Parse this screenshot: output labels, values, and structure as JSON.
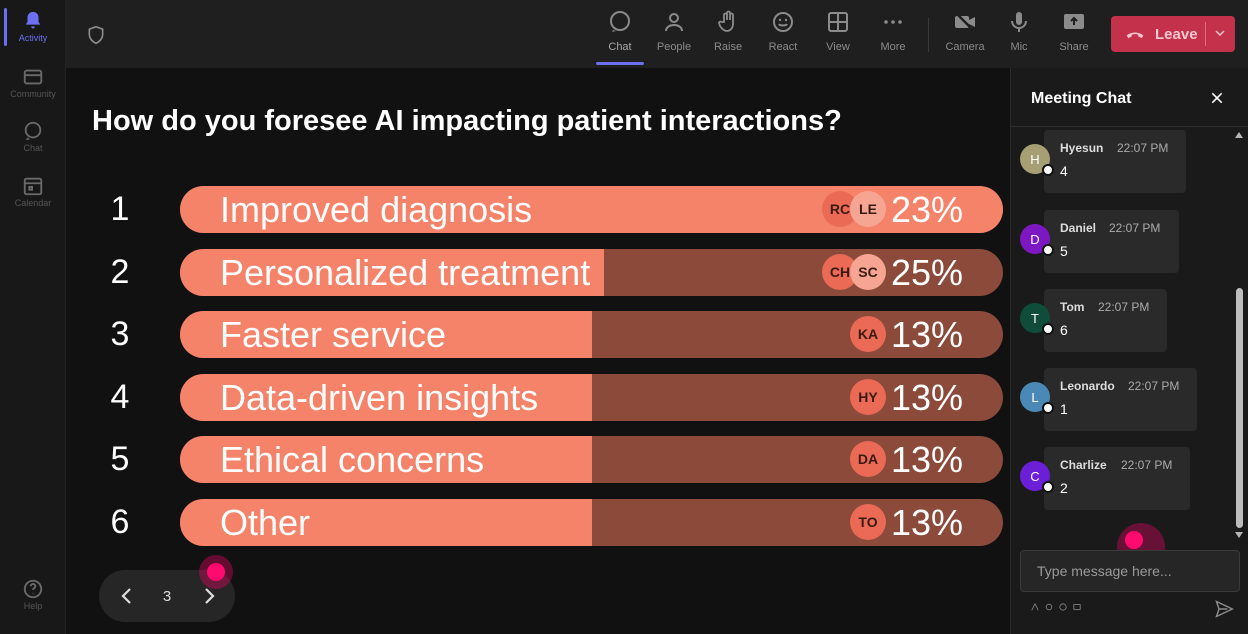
{
  "rail": {
    "items": [
      {
        "label": "Activity",
        "icon": "bell-icon"
      },
      {
        "label": "Community",
        "icon": "community-icon"
      },
      {
        "label": "Chat",
        "icon": "chat-icon"
      },
      {
        "label": "Calendar",
        "icon": "calendar-icon"
      }
    ],
    "help_label": "Help"
  },
  "toolbar": {
    "items": [
      {
        "label": "Chat",
        "icon": "chat-icon"
      },
      {
        "label": "People",
        "icon": "people-icon"
      },
      {
        "label": "Raise",
        "icon": "hand-icon"
      },
      {
        "label": "React",
        "icon": "smile-icon"
      },
      {
        "label": "View",
        "icon": "grid-icon"
      },
      {
        "label": "More",
        "icon": "more-icon"
      },
      {
        "label": "Camera",
        "icon": "camera-off-icon"
      },
      {
        "label": "Mic",
        "icon": "mic-icon"
      },
      {
        "label": "Share",
        "icon": "share-icon"
      }
    ],
    "leave_label": "Leave"
  },
  "poll": {
    "question": "How do you foresee AI impacting patient interactions?",
    "options": [
      {
        "num": "1",
        "label": "Improved diagnosis",
        "pct": "23%",
        "fill": 1.0,
        "avatars": [
          "RC",
          "LE"
        ]
      },
      {
        "num": "2",
        "label": "Personalized treatment",
        "pct": "25%",
        "fill": 0.515,
        "avatars": [
          "CH",
          "SC"
        ]
      },
      {
        "num": "3",
        "label": "Faster service",
        "pct": "13%",
        "fill": 0.5,
        "avatars": [
          "KA"
        ]
      },
      {
        "num": "4",
        "label": "Data-driven insights",
        "pct": "13%",
        "fill": 0.5,
        "avatars": [
          "HY"
        ]
      },
      {
        "num": "5",
        "label": "Ethical concerns",
        "pct": "13%",
        "fill": 0.5,
        "avatars": [
          "DA"
        ]
      },
      {
        "num": "6",
        "label": "Other",
        "pct": "13%",
        "fill": 0.5,
        "avatars": [
          "TO"
        ]
      }
    ],
    "page": "3"
  },
  "chat": {
    "title": "Meeting Chat",
    "messages": [
      {
        "initial": "H",
        "name": "Hyesun",
        "time": "22:07 PM",
        "text": "4",
        "color": "#a59f73"
      },
      {
        "initial": "D",
        "name": "Daniel",
        "time": "22:07 PM",
        "text": "5",
        "color": "#7d17c2"
      },
      {
        "initial": "T",
        "name": "Tom",
        "time": "22:07 PM",
        "text": "6",
        "color": "#0f4c3a"
      },
      {
        "initial": "L",
        "name": "Leonardo",
        "time": "22:07 PM",
        "text": "1",
        "color": "#4a89b6"
      },
      {
        "initial": "C",
        "name": "Charlize",
        "time": "22:07 PM",
        "text": "2",
        "color": "#6b1fd6"
      }
    ],
    "input_placeholder": "Type message here..."
  }
}
